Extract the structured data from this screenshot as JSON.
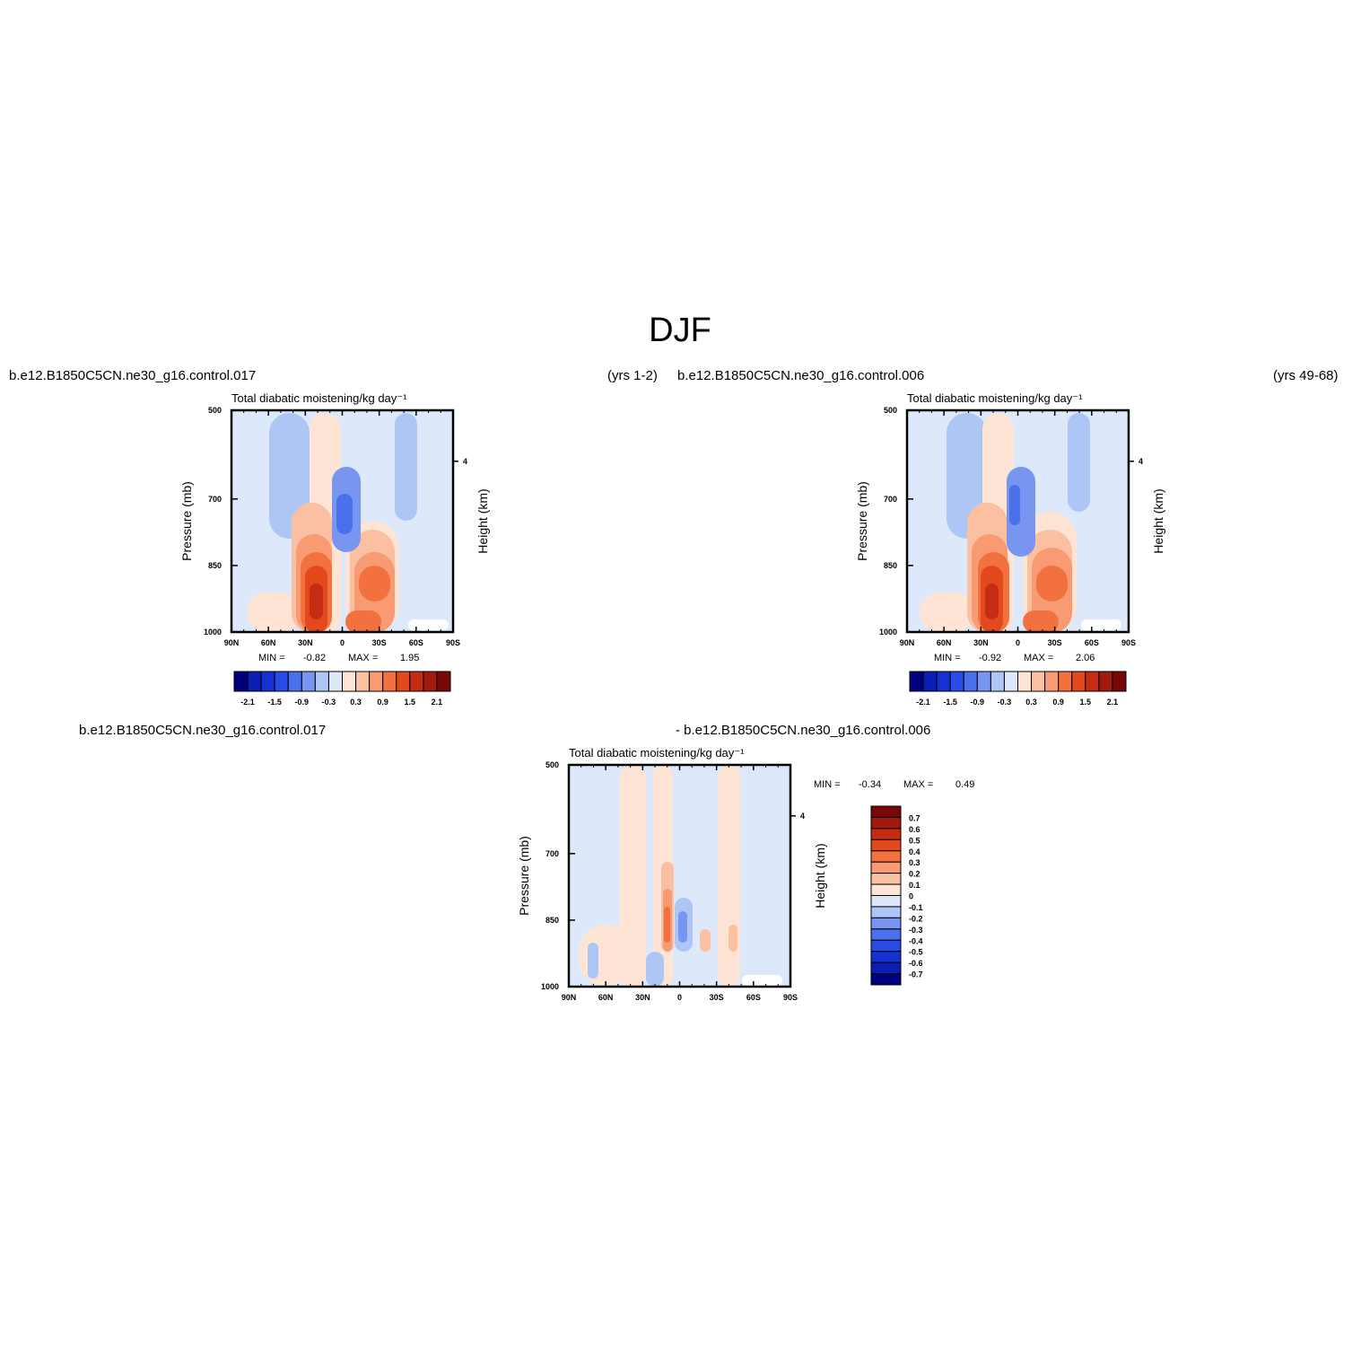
{
  "figure": {
    "title": "DJF",
    "header_left_case": "b.e12.B1850C5CN.ne30_g16.control.017",
    "header_left_years": "(yrs  1-2)",
    "header_right_case": "b.e12.B1850C5CN.ne30_g16.control.006",
    "header_right_years": "(yrs  49-68)",
    "diff_case_a": "b.e12.B1850C5CN.ne30_g16.control.017",
    "diff_case_b": "-  b.e12.B1850C5CN.ne30_g16.control.006"
  },
  "chart_data": [
    {
      "type": "heatmap",
      "title": "Total diabatic moistening/kg day⁻¹",
      "xlabel": "",
      "ylabel": "Pressure (mb)",
      "y2label": "Height (km)",
      "x_ticks": [
        "90N",
        "60N",
        "30N",
        "0",
        "30S",
        "60S",
        "90S"
      ],
      "y_ticks": [
        "500",
        "700",
        "850",
        "1000"
      ],
      "y2_ticks": [
        "4"
      ],
      "min_label": "MIN =",
      "min_value": "-0.82",
      "max_label": "MAX =",
      "max_value": "1.95",
      "colorbar_labels": [
        "-2.1",
        "-1.5",
        "-0.9",
        "-0.3",
        "0.3",
        "0.9",
        "1.5",
        "2.1"
      ],
      "colorbar_levels": [
        -2.1,
        -1.8,
        -1.5,
        -1.2,
        -0.9,
        -0.6,
        -0.3,
        0,
        0.3,
        0.6,
        0.9,
        1.2,
        1.5,
        1.8,
        2.1
      ],
      "colors": [
        "#00007f",
        "#0a1eb4",
        "#1432d2",
        "#2a4ce6",
        "#4a70ec",
        "#7896f0",
        "#adc6f6",
        "#dde9fb",
        "#fde4d4",
        "#fbc0a2",
        "#f89b72",
        "#f2713f",
        "#e3491d",
        "#c52d12",
        "#a01a0d",
        "#7a0707"
      ]
    },
    {
      "type": "heatmap",
      "title": "Total diabatic moistening/kg day⁻¹",
      "xlabel": "",
      "ylabel": "Pressure (mb)",
      "y2label": "Height (km)",
      "x_ticks": [
        "90N",
        "60N",
        "30N",
        "0",
        "30S",
        "60S",
        "90S"
      ],
      "y_ticks": [
        "500",
        "700",
        "850",
        "1000"
      ],
      "y2_ticks": [
        "4"
      ],
      "min_label": "MIN =",
      "min_value": "-0.92",
      "max_label": "MAX =",
      "max_value": "2.06",
      "colorbar_labels": [
        "-2.1",
        "-1.5",
        "-0.9",
        "-0.3",
        "0.3",
        "0.9",
        "1.5",
        "2.1"
      ],
      "colorbar_levels": [
        -2.1,
        -1.8,
        -1.5,
        -1.2,
        -0.9,
        -0.6,
        -0.3,
        0,
        0.3,
        0.6,
        0.9,
        1.2,
        1.5,
        1.8,
        2.1
      ],
      "colors": [
        "#00007f",
        "#0a1eb4",
        "#1432d2",
        "#2a4ce6",
        "#4a70ec",
        "#7896f0",
        "#adc6f6",
        "#dde9fb",
        "#fde4d4",
        "#fbc0a2",
        "#f89b72",
        "#f2713f",
        "#e3491d",
        "#c52d12",
        "#a01a0d",
        "#7a0707"
      ]
    },
    {
      "type": "heatmap",
      "title": "Total diabatic moistening/kg day⁻¹",
      "xlabel": "",
      "ylabel": "Pressure (mb)",
      "y2label": "Height (km)",
      "x_ticks": [
        "90N",
        "60N",
        "30N",
        "0",
        "30S",
        "60S",
        "90S"
      ],
      "y_ticks": [
        "500",
        "700",
        "850",
        "1000"
      ],
      "y2_ticks": [
        "4"
      ],
      "min_label": "MIN =",
      "min_value": "-0.34",
      "max_label": "MAX =",
      "max_value": "0.49",
      "colorbar_labels": [
        "0.7",
        "0.6",
        "0.5",
        "0.4",
        "0.3",
        "0.2",
        "0.1",
        "0",
        "-0.1",
        "-0.2",
        "-0.3",
        "-0.4",
        "-0.5",
        "-0.6",
        "-0.7"
      ],
      "colorbar_levels": [
        -0.7,
        -0.6,
        -0.5,
        -0.4,
        -0.3,
        -0.2,
        -0.1,
        0,
        0.1,
        0.2,
        0.3,
        0.4,
        0.5,
        0.6,
        0.7
      ],
      "colors": [
        "#00007f",
        "#0a1eb4",
        "#1432d2",
        "#2a4ce6",
        "#4a70ec",
        "#7896f0",
        "#adc6f6",
        "#dde9fb",
        "#fde4d4",
        "#fbc0a2",
        "#f89b72",
        "#f2713f",
        "#e3491d",
        "#c52d12",
        "#a01a0d",
        "#7a0707"
      ]
    }
  ]
}
